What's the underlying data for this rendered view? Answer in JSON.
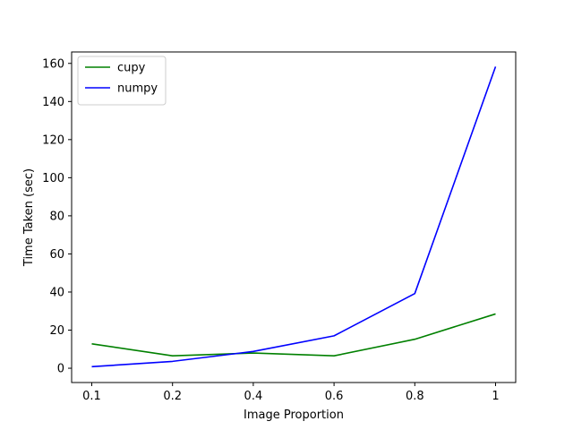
{
  "chart_data": {
    "type": "line",
    "title": "",
    "xlabel": "Image Proportion",
    "ylabel": "Time Taken (sec)",
    "categories": [
      "0.1",
      "0.2",
      "0.4",
      "0.6",
      "0.8",
      "1"
    ],
    "ylim": [
      -7.5,
      166
    ],
    "yticks": [
      0,
      20,
      40,
      60,
      80,
      100,
      120,
      140,
      160
    ],
    "grid": false,
    "legend_position": "top-left",
    "series": [
      {
        "name": "cupy",
        "color": "#008000",
        "values": [
          12.8,
          6.5,
          8.0,
          6.5,
          15.2,
          28.5
        ]
      },
      {
        "name": "numpy",
        "color": "#0000ff",
        "values": [
          0.8,
          3.6,
          8.8,
          17.0,
          39.2,
          158.3
        ]
      }
    ]
  }
}
